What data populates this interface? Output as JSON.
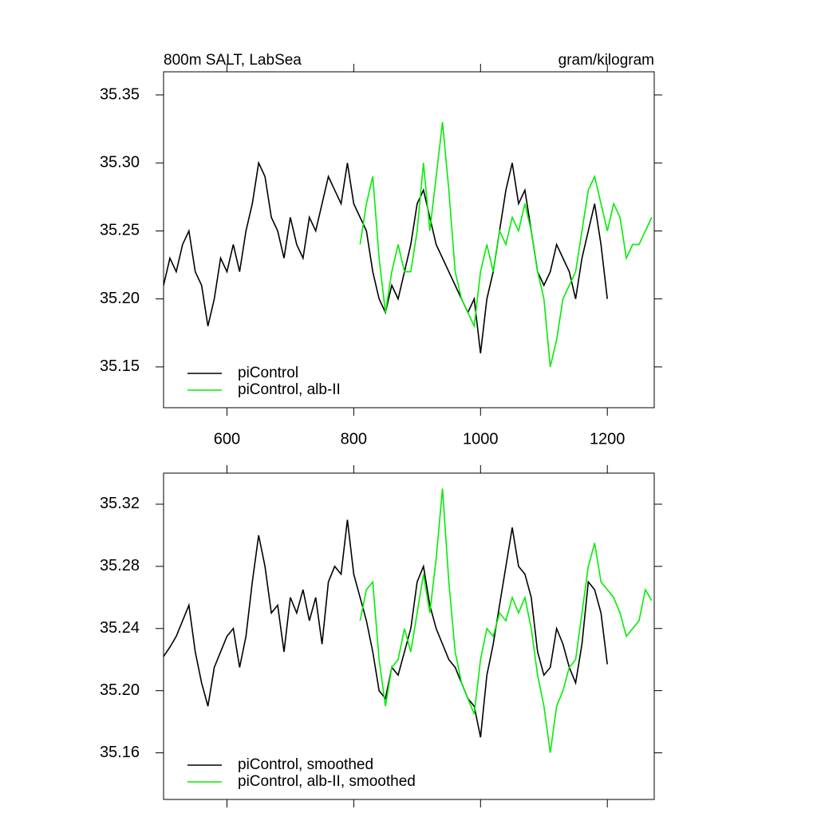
{
  "chart_data": [
    {
      "type": "line",
      "title": "800m SALT, LabSea",
      "units": "gram/kilogram",
      "x": [
        500,
        510,
        520,
        530,
        540,
        550,
        560,
        570,
        580,
        590,
        600,
        610,
        620,
        630,
        640,
        650,
        660,
        670,
        680,
        690,
        700,
        710,
        720,
        730,
        740,
        750,
        760,
        770,
        780,
        790,
        800,
        810,
        820,
        830,
        840,
        850,
        860,
        870,
        880,
        890,
        900,
        910,
        920,
        930,
        940,
        950,
        960,
        970,
        980,
        990,
        1000,
        1010,
        1020,
        1030,
        1040,
        1050,
        1060,
        1070,
        1080,
        1090,
        1100,
        1110,
        1120,
        1130,
        1140,
        1150,
        1160,
        1170,
        1180,
        1190,
        1200,
        1210,
        1220,
        1230,
        1240,
        1250,
        1260,
        1270
      ],
      "series": [
        {
          "name": "piControl",
          "color": "#000000",
          "values": [
            35.21,
            35.23,
            35.22,
            35.24,
            35.25,
            35.22,
            35.21,
            35.18,
            35.2,
            35.23,
            35.22,
            35.24,
            35.22,
            35.25,
            35.27,
            35.3,
            35.29,
            35.26,
            35.25,
            35.23,
            35.26,
            35.24,
            35.23,
            35.26,
            35.25,
            35.27,
            35.29,
            35.28,
            35.27,
            35.3,
            35.27,
            35.26,
            35.25,
            35.22,
            35.2,
            35.19,
            35.21,
            35.2,
            35.22,
            35.24,
            35.27,
            35.28,
            35.26,
            35.24,
            35.23,
            35.22,
            35.21,
            35.2,
            35.19,
            35.2,
            35.16,
            35.2,
            35.22,
            35.25,
            35.28,
            35.3,
            35.27,
            35.28,
            35.25,
            35.22,
            35.21,
            35.22,
            35.24,
            35.23,
            35.22,
            35.2,
            35.23,
            35.25,
            35.27,
            35.24,
            35.2,
            null,
            null,
            null,
            null,
            null,
            null,
            null
          ]
        },
        {
          "name": "piControl, alb-II",
          "color": "#00ee00",
          "values": [
            null,
            null,
            null,
            null,
            null,
            null,
            null,
            null,
            null,
            null,
            null,
            null,
            null,
            null,
            null,
            null,
            null,
            null,
            null,
            null,
            null,
            null,
            null,
            null,
            null,
            null,
            null,
            null,
            null,
            null,
            null,
            35.24,
            35.27,
            35.29,
            35.23,
            35.19,
            35.22,
            35.24,
            35.22,
            35.22,
            35.25,
            35.3,
            35.25,
            35.29,
            35.33,
            35.28,
            35.22,
            35.2,
            35.19,
            35.18,
            35.22,
            35.24,
            35.22,
            35.25,
            35.24,
            35.26,
            35.25,
            35.27,
            35.25,
            35.22,
            35.2,
            35.15,
            35.17,
            35.2,
            35.21,
            35.22,
            35.25,
            35.28,
            35.29,
            35.27,
            35.25,
            35.27,
            35.26,
            35.23,
            35.24,
            35.24,
            35.25,
            35.26
          ]
        }
      ],
      "xlim": [
        500,
        1274
      ],
      "xticks": [
        600,
        800,
        1000,
        1200
      ],
      "ylim": [
        35.12,
        35.367
      ],
      "yticks": [
        35.15,
        {
          "value": 35.2,
          "label": "35.20"
        },
        35.25,
        {
          "value": 35.3,
          "label": "35.30"
        },
        35.35
      ],
      "legend": "lower left"
    },
    {
      "type": "line",
      "x": [
        500,
        510,
        520,
        530,
        540,
        550,
        560,
        570,
        580,
        590,
        600,
        610,
        620,
        630,
        640,
        650,
        660,
        670,
        680,
        690,
        700,
        710,
        720,
        730,
        740,
        750,
        760,
        770,
        780,
        790,
        800,
        810,
        820,
        830,
        840,
        850,
        860,
        870,
        880,
        890,
        900,
        910,
        920,
        930,
        940,
        950,
        960,
        970,
        980,
        990,
        1000,
        1010,
        1020,
        1030,
        1040,
        1050,
        1060,
        1070,
        1080,
        1090,
        1100,
        1110,
        1120,
        1130,
        1140,
        1150,
        1160,
        1170,
        1180,
        1190,
        1200,
        1210,
        1220,
        1230,
        1240,
        1250,
        1260,
        1270
      ],
      "series": [
        {
          "name": "piControl, smoothed",
          "color": "#000000",
          "values": [
            35.222,
            35.228,
            35.235,
            35.245,
            35.255,
            35.225,
            35.205,
            35.19,
            35.215,
            35.225,
            35.235,
            35.24,
            35.215,
            35.235,
            35.27,
            35.3,
            35.28,
            35.25,
            35.255,
            35.225,
            35.26,
            35.25,
            35.265,
            35.245,
            35.26,
            35.23,
            35.27,
            35.28,
            35.275,
            35.31,
            35.275,
            35.26,
            35.245,
            35.225,
            35.2,
            35.195,
            35.215,
            35.21,
            35.225,
            35.24,
            35.27,
            35.28,
            35.255,
            35.24,
            35.23,
            35.22,
            35.215,
            35.205,
            35.195,
            35.19,
            35.17,
            35.21,
            35.23,
            35.255,
            35.28,
            35.305,
            35.28,
            35.275,
            35.26,
            35.225,
            35.21,
            35.215,
            35.24,
            35.23,
            35.215,
            35.205,
            35.23,
            35.27,
            35.265,
            35.25,
            35.217,
            null,
            null,
            null,
            null,
            null,
            null,
            null
          ]
        },
        {
          "name": "piControl, alb-II, smoothed",
          "color": "#00ee00",
          "values": [
            null,
            null,
            null,
            null,
            null,
            null,
            null,
            null,
            null,
            null,
            null,
            null,
            null,
            null,
            null,
            null,
            null,
            null,
            null,
            null,
            null,
            null,
            null,
            null,
            null,
            null,
            null,
            null,
            null,
            null,
            null,
            35.245,
            35.265,
            35.27,
            35.22,
            35.19,
            35.215,
            35.22,
            35.24,
            35.225,
            35.25,
            35.275,
            35.25,
            35.285,
            35.33,
            35.27,
            35.225,
            35.205,
            35.195,
            35.185,
            35.22,
            35.24,
            35.235,
            35.25,
            35.245,
            35.26,
            35.25,
            35.26,
            35.24,
            35.21,
            35.19,
            35.16,
            35.19,
            35.2,
            35.215,
            35.22,
            35.25,
            35.28,
            35.295,
            35.27,
            35.265,
            35.26,
            35.25,
            35.235,
            35.24,
            35.245,
            35.265,
            35.258
          ]
        }
      ],
      "xlim": [
        500,
        1274
      ],
      "xticks": [
        600,
        800,
        1000,
        1200
      ],
      "ylim": [
        35.13,
        35.34
      ],
      "yticks": [
        35.16,
        {
          "value": 35.2,
          "label": "35.20"
        },
        35.24,
        35.28,
        35.32
      ],
      "legend": "lower left"
    }
  ]
}
